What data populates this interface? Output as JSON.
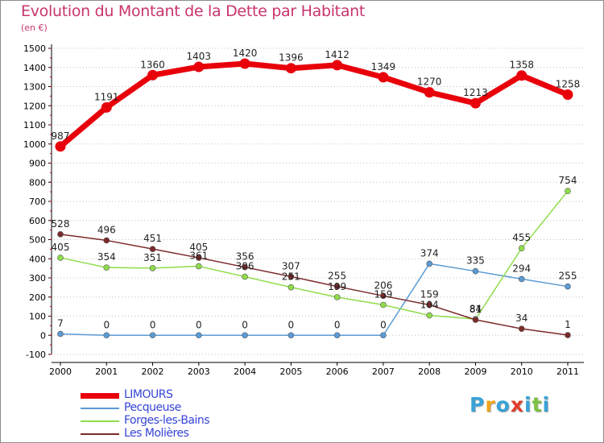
{
  "header": {
    "title": "Evolution du Montant de la Dette par Habitant",
    "subtitle": "(en €)"
  },
  "colors": {
    "title": "#c8346f",
    "legend_text": "#3545d6",
    "axis": "#000000",
    "grid": "#c0c0c0"
  },
  "chart_data": {
    "type": "line",
    "title": "Evolution du Montant de la Dette par Habitant",
    "subtitle": "(en €)",
    "xlabel": "",
    "ylabel": "",
    "x": [
      "2000",
      "2001",
      "2002",
      "2003",
      "2004",
      "2005",
      "2006",
      "2007",
      "2008",
      "2009",
      "2010",
      "2011"
    ],
    "ylim": [
      -100,
      1500
    ],
    "yticks": [
      "-100",
      "0",
      "100",
      "200",
      "300",
      "400",
      "500",
      "600",
      "700",
      "800",
      "900",
      "1000",
      "1100",
      "1200",
      "1300",
      "1400",
      "1500"
    ],
    "grid": "horizontal dotted",
    "legend_position": "bottom-left",
    "series": [
      {
        "name": "LIMOURS",
        "color": "#e8000b",
        "values": [
          987,
          1191,
          1360,
          1403,
          1420,
          1396,
          1412,
          1349,
          1270,
          1213,
          1358,
          1258
        ],
        "labels": [
          "987",
          "1191",
          "1360",
          "1403",
          "1420",
          "1396",
          "1412",
          "1349",
          "1270",
          "1213",
          "1358",
          "1258"
        ]
      },
      {
        "name": "Pecqueuse",
        "color": "#5b9bd5",
        "values": [
          7,
          0,
          0,
          0,
          0,
          0,
          0,
          0,
          374,
          335,
          294,
          255
        ],
        "labels": [
          "7",
          "0",
          "0",
          "0",
          "0",
          "0",
          "0",
          "0",
          "374",
          "335",
          "294",
          "255"
        ]
      },
      {
        "name": "Forges-les-Bains",
        "color": "#8fdc4a",
        "values": [
          405,
          354,
          351,
          361,
          306,
          251,
          199,
          159,
          104,
          84,
          455,
          754
        ],
        "labels": [
          "405",
          "354",
          "351",
          "361",
          "306",
          "251",
          "199",
          "159",
          "104",
          "84",
          "455",
          "754"
        ]
      },
      {
        "name": "Les Molières",
        "color": "#7b2a2a",
        "values": [
          528,
          496,
          451,
          405,
          356,
          307,
          255,
          206,
          159,
          81,
          34,
          1
        ],
        "labels": [
          "528",
          "496",
          "451",
          "405",
          "356",
          "307",
          "255",
          "206",
          "159",
          "81",
          "34",
          "1"
        ]
      }
    ]
  },
  "logo": {
    "letters": [
      "P",
      "r",
      "o",
      "x",
      "i",
      "t",
      "i"
    ],
    "colors": [
      "#3aa3d8",
      "#f1a51c",
      "#3aa3d8",
      "#e23d2a",
      "#3aa3d8",
      "#7cc242",
      "#3aa3d8"
    ]
  }
}
